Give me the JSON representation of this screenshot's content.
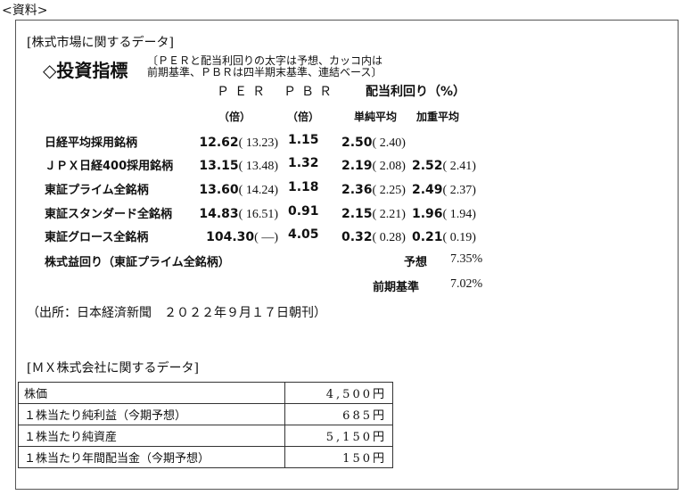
{
  "heading": "<資料>",
  "section1_title": "[株式市場に関するデータ]",
  "index_title": "◇投資指標",
  "note_line1": "〔ＰＥＲと配当利回りの太字は予想、カッコ内は",
  "note_line2": "前期基準、ＰＢＲは四半期末基準、連結ベース〕",
  "headers": {
    "per": "ＰＥＲ",
    "pbr": "ＰＢＲ",
    "yield": "配当利回り（%）",
    "per_unit": "（倍）",
    "pbr_unit": "（倍）",
    "simple": "単純平均",
    "weighted": "加重平均"
  },
  "rows": [
    {
      "name": "日経平均採用銘柄",
      "per": "12.62",
      "per_prev": "( 13.23)",
      "pbr": "1.15",
      "simple": "2.50",
      "simple_prev": "( 2.40)",
      "weighted": "",
      "weighted_prev": ""
    },
    {
      "name": "ＪＰＸ日経400採用銘柄",
      "per": "13.15",
      "per_prev": "( 13.48)",
      "pbr": "1.32",
      "simple": "2.19",
      "simple_prev": "( 2.08)",
      "weighted": "2.52",
      "weighted_prev": "( 2.41)"
    },
    {
      "name": "東証プライム全銘柄",
      "per": "13.60",
      "per_prev": "( 14.24)",
      "pbr": "1.18",
      "simple": "2.36",
      "simple_prev": "( 2.25)",
      "weighted": "2.49",
      "weighted_prev": "( 2.37)"
    },
    {
      "name": "東証スタンダード全銘柄",
      "per": "14.83",
      "per_prev": "( 16.51)",
      "pbr": "0.91",
      "simple": "2.15",
      "simple_prev": "( 2.21)",
      "weighted": "1.96",
      "weighted_prev": "( 1.94)"
    },
    {
      "name": "東証グロース全銘柄",
      "per": "104.30",
      "per_prev": "(    ―)",
      "pbr": "4.05",
      "simple": "0.32",
      "simple_prev": "( 0.28)",
      "weighted": "0.21",
      "weighted_prev": "( 0.19)"
    }
  ],
  "earnings_yield": {
    "label": "株式益回り（東証プライム全銘柄）",
    "forecast_label": "予想",
    "forecast_value": "7.35%",
    "prev_label": "前期基準",
    "prev_value": "7.02%"
  },
  "source": "（出所：日本経済新聞　２０２２年９月１７日朝刊）",
  "section2_title": "[ＭＸ株式会社に関するデータ]",
  "mx_table": [
    {
      "item": "株価",
      "value": "4,500円"
    },
    {
      "item": "１株当たり純利益（今期予想）",
      "value": "685円"
    },
    {
      "item": "１株当たり純資産",
      "value": "5,150円"
    },
    {
      "item": "１株当たり年間配当金（今期予想）",
      "value": "150円"
    }
  ]
}
